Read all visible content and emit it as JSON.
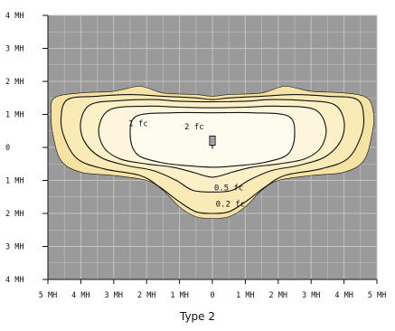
{
  "chart_data": {
    "type": "contour",
    "caption": "Type 2",
    "xlim": [
      -5,
      5
    ],
    "ylim": [
      -4,
      4
    ],
    "grid": true,
    "x_ticks": [
      -5,
      -4,
      -3,
      -2,
      -1,
      0,
      1,
      2,
      3,
      4,
      5
    ],
    "y_ticks": [
      4,
      3,
      2,
      1,
      0,
      -1,
      -2,
      -3,
      -4
    ],
    "x_tick_labels": [
      "5 MH",
      "4 MH",
      "3 MH",
      "2 MH",
      "1 MH",
      "0",
      "1 MH",
      "2 MH",
      "3 MH",
      "4 MH",
      "5 MH"
    ],
    "y_tick_labels": [
      "4 MH",
      "3 MH",
      "2 MH",
      "1 MH",
      "0",
      "1 MH",
      "2 MH",
      "3 MH",
      "4 MH"
    ],
    "colors": {
      "background": "#9a9a9a",
      "grid": "#c4c4c4",
      "level_0": "#f6e3a4",
      "level_1": "#f9eab6",
      "level_2": "#fbf0c8",
      "level_3": "#fdf6dc",
      "level_4": "#fefbef",
      "stroke": "#111111"
    },
    "luminaire": {
      "x": 0,
      "y": 0.15
    },
    "contours": [
      {
        "label": "",
        "points": [
          [
            -4.8,
            1.5
          ],
          [
            -4.0,
            1.65
          ],
          [
            -3.0,
            1.7
          ],
          [
            -2.2,
            1.85
          ],
          [
            -1.5,
            1.65
          ],
          [
            -0.5,
            1.6
          ],
          [
            0,
            1.55
          ],
          [
            0.5,
            1.6
          ],
          [
            1.5,
            1.65
          ],
          [
            2.2,
            1.85
          ],
          [
            3.0,
            1.7
          ],
          [
            4.0,
            1.65
          ],
          [
            4.7,
            1.5
          ],
          [
            4.9,
            1.0
          ],
          [
            4.85,
            0.4
          ],
          [
            4.6,
            -0.4
          ],
          [
            4.0,
            -0.75
          ],
          [
            3.0,
            -0.85
          ],
          [
            2.0,
            -1.0
          ],
          [
            1.5,
            -1.3
          ],
          [
            1.0,
            -1.8
          ],
          [
            0.5,
            -2.1
          ],
          [
            0,
            -2.15
          ],
          [
            -0.5,
            -2.1
          ],
          [
            -1.0,
            -1.8
          ],
          [
            -1.5,
            -1.3
          ],
          [
            -2.0,
            -1.0
          ],
          [
            -3.0,
            -0.85
          ],
          [
            -4.0,
            -0.75
          ],
          [
            -4.6,
            -0.4
          ],
          [
            -4.85,
            0.4
          ],
          [
            -4.9,
            1.0
          ]
        ]
      },
      {
        "label": "0.2 fc",
        "points": [
          [
            -4.4,
            1.45
          ],
          [
            -3.5,
            1.55
          ],
          [
            -2.5,
            1.6
          ],
          [
            -1.5,
            1.55
          ],
          [
            -0.5,
            1.5
          ],
          [
            0,
            1.45
          ],
          [
            0.5,
            1.5
          ],
          [
            1.5,
            1.55
          ],
          [
            2.5,
            1.6
          ],
          [
            3.5,
            1.55
          ],
          [
            4.4,
            1.45
          ],
          [
            4.6,
            0.9
          ],
          [
            4.5,
            0.3
          ],
          [
            4.1,
            -0.35
          ],
          [
            3.3,
            -0.65
          ],
          [
            2.2,
            -0.85
          ],
          [
            1.6,
            -1.2
          ],
          [
            1.0,
            -1.65
          ],
          [
            0.5,
            -1.95
          ],
          [
            0,
            -2.0
          ],
          [
            -0.5,
            -1.95
          ],
          [
            -1.0,
            -1.65
          ],
          [
            -1.6,
            -1.2
          ],
          [
            -2.2,
            -0.85
          ],
          [
            -3.3,
            -0.65
          ],
          [
            -4.1,
            -0.35
          ],
          [
            -4.5,
            0.3
          ],
          [
            -4.6,
            0.9
          ]
        ]
      },
      {
        "label": "0.5 fc",
        "points": [
          [
            -3.7,
            1.3
          ],
          [
            -2.8,
            1.42
          ],
          [
            -1.8,
            1.45
          ],
          [
            -1.0,
            1.4
          ],
          [
            0,
            1.38
          ],
          [
            1.0,
            1.4
          ],
          [
            1.8,
            1.45
          ],
          [
            2.8,
            1.42
          ],
          [
            3.7,
            1.3
          ],
          [
            4.0,
            0.8
          ],
          [
            3.9,
            0.2
          ],
          [
            3.4,
            -0.3
          ],
          [
            2.6,
            -0.55
          ],
          [
            1.8,
            -0.7
          ],
          [
            1.1,
            -1.0
          ],
          [
            0.6,
            -1.3
          ],
          [
            0,
            -1.35
          ],
          [
            -0.6,
            -1.3
          ],
          [
            -1.1,
            -1.0
          ],
          [
            -1.8,
            -0.7
          ],
          [
            -2.6,
            -0.55
          ],
          [
            -3.4,
            -0.3
          ],
          [
            -3.9,
            0.2
          ],
          [
            -4.0,
            0.8
          ]
        ]
      },
      {
        "label": "1 fc",
        "points": [
          [
            -3.1,
            1.15
          ],
          [
            -2.0,
            1.25
          ],
          [
            -1.0,
            1.22
          ],
          [
            0,
            1.2
          ],
          [
            1.0,
            1.22
          ],
          [
            2.0,
            1.25
          ],
          [
            3.1,
            1.15
          ],
          [
            3.45,
            0.6
          ],
          [
            3.3,
            0.0
          ],
          [
            2.8,
            -0.35
          ],
          [
            2.0,
            -0.5
          ],
          [
            1.2,
            -0.6
          ],
          [
            0.6,
            -0.75
          ],
          [
            0,
            -0.9
          ],
          [
            -0.6,
            -0.75
          ],
          [
            -1.2,
            -0.6
          ],
          [
            -2.0,
            -0.5
          ],
          [
            -2.8,
            -0.35
          ],
          [
            -3.3,
            0.0
          ],
          [
            -3.45,
            0.6
          ]
        ]
      },
      {
        "label": "2 fc",
        "points": [
          [
            -2.3,
            0.95
          ],
          [
            -1.2,
            1.05
          ],
          [
            0,
            1.05
          ],
          [
            1.2,
            1.05
          ],
          [
            2.3,
            0.95
          ],
          [
            2.5,
            0.4
          ],
          [
            2.3,
            -0.2
          ],
          [
            1.6,
            -0.45
          ],
          [
            0.8,
            -0.55
          ],
          [
            0,
            -0.6
          ],
          [
            -0.8,
            -0.55
          ],
          [
            -1.6,
            -0.45
          ],
          [
            -2.3,
            -0.2
          ],
          [
            -2.5,
            0.4
          ]
        ]
      }
    ],
    "contour_label_positions": [
      {
        "label": "1 fc",
        "x": -2.55,
        "y": 0.65
      },
      {
        "label": "2 fc",
        "x": -0.85,
        "y": 0.55
      },
      {
        "label": "0.5 fc",
        "x": 0.05,
        "y": -1.3
      },
      {
        "label": "0.2 fc",
        "x": 0.1,
        "y": -1.8
      }
    ]
  }
}
